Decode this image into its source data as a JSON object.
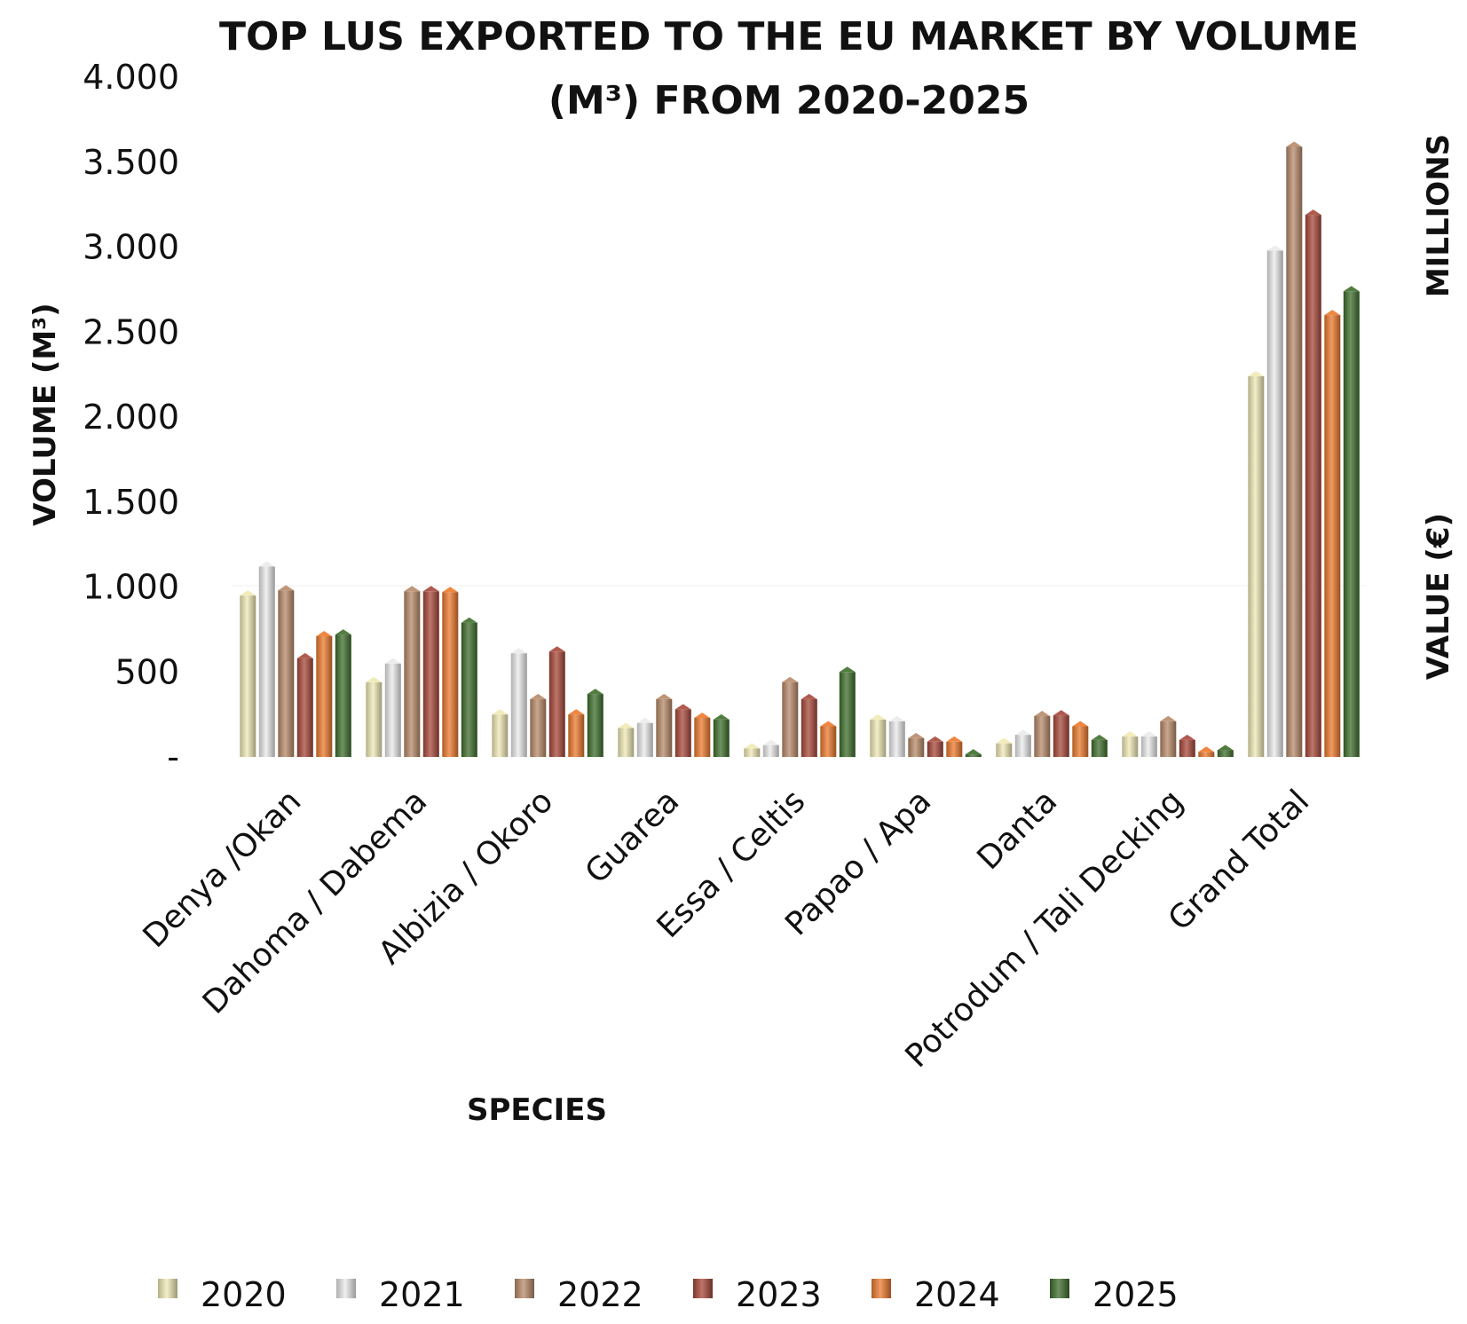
{
  "chart_data": {
    "type": "bar",
    "title": [
      "TOP LUS EXPORTED TO THE EU MARKET BY VOLUME",
      "(M³) FROM 2020-2025"
    ],
    "xlabel": "SPECIES",
    "ylabel": "VOLUME (M³)",
    "y2label_top": "MILLIONS",
    "y2label_bottom": "VALUE (€)",
    "ylim": [
      0,
      4000
    ],
    "yticks": [
      0,
      500,
      1000,
      1500,
      2000,
      2500,
      3000,
      3500,
      4000
    ],
    "ytick_labels": [
      "-",
      "500",
      "1.000",
      "1.500",
      "2.000",
      "2.500",
      "3.000",
      "3.500",
      "4.000"
    ],
    "grid": false,
    "legend_position": "bottom",
    "categories": [
      "Denya /Okan",
      "Dahoma / Dabema",
      "Albizia / Okoro",
      "Guarea",
      "Essa / Celtis",
      "Papao / Apa",
      "Danta",
      "Potrodum / Tali Decking",
      "Grand Total"
    ],
    "series": [
      {
        "name": "2020",
        "color": "#f0eab5",
        "values": [
          950,
          440,
          250,
          170,
          50,
          220,
          80,
          120,
          2240
        ]
      },
      {
        "name": "2021",
        "color": "#ebebeb",
        "values": [
          1120,
          550,
          610,
          200,
          70,
          210,
          130,
          120,
          2980
        ]
      },
      {
        "name": "2022",
        "color": "#b88a69",
        "values": [
          980,
          975,
          340,
          340,
          440,
          110,
          240,
          210,
          3590
        ]
      },
      {
        "name": "2023",
        "color": "#a8483a",
        "values": [
          580,
          975,
          620,
          280,
          340,
          90,
          245,
          100,
          3190
        ]
      },
      {
        "name": "2024",
        "color": "#ec7a2d",
        "values": [
          710,
          970,
          250,
          230,
          180,
          90,
          180,
          30,
          2600
        ]
      },
      {
        "name": "2025",
        "color": "#3f6e2c",
        "values": [
          720,
          790,
          370,
          220,
          500,
          15,
          100,
          40,
          2740
        ]
      }
    ]
  }
}
